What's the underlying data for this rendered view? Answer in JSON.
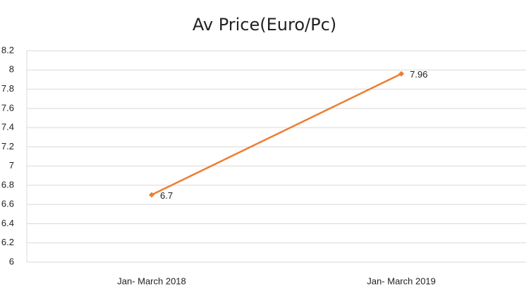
{
  "chart_data": {
    "type": "line",
    "title": "Av Price(Euro/Pc)",
    "categories": [
      "Jan- March 2018",
      "Jan- March 2019"
    ],
    "series": [
      {
        "name": "Av Price(Euro/Pc)",
        "color": "#ed7d31",
        "values": [
          6.7,
          7.96
        ]
      }
    ],
    "ylim": [
      6,
      8.2
    ],
    "yticks": [
      6,
      6.2,
      6.4,
      6.6,
      6.8,
      7,
      7.2,
      7.4,
      7.6,
      7.8,
      8,
      8.2
    ],
    "grid": true,
    "data_labels": true
  }
}
